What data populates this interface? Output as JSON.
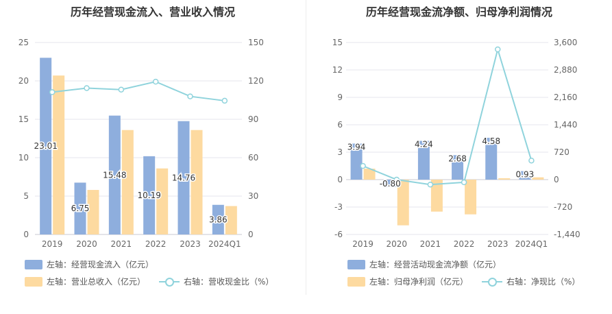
{
  "colors": {
    "bar1": "#8eaedd",
    "bar2": "#fddaa0",
    "line": "#8fd3dc",
    "grid": "#e6e6ee"
  },
  "chart_data": [
    {
      "type": "bar",
      "title": "历年经营现金流入、营业收入情况",
      "categories": [
        "2019",
        "2020",
        "2021",
        "2022",
        "2023",
        "2024Q1"
      ],
      "y_left": {
        "min": 0,
        "max": 25,
        "ticks": [
          "0",
          "5",
          "10",
          "15",
          "20",
          "25"
        ]
      },
      "y_right": {
        "min": 0,
        "max": 150,
        "ticks": [
          "0",
          "30",
          "60",
          "90",
          "120",
          "150"
        ]
      },
      "series": [
        {
          "name": "左轴：经营现金流入（亿元）",
          "axis": "left",
          "kind": "bar",
          "values": [
            23.01,
            6.75,
            15.48,
            10.19,
            14.76,
            3.86
          ],
          "labels": [
            "23.01",
            "6.75",
            "15.48",
            "10.19",
            "14.76",
            "3.86"
          ]
        },
        {
          "name": "左轴：营业总收入（亿元）",
          "axis": "left",
          "kind": "bar",
          "values": [
            20.7,
            5.8,
            13.6,
            8.6,
            13.6,
            3.7
          ]
        },
        {
          "name": "右轴：营收现金比（%）",
          "axis": "right",
          "kind": "line",
          "values": [
            111.2,
            114.4,
            113.2,
            119.4,
            107.9,
            104.5
          ]
        }
      ]
    },
    {
      "type": "bar",
      "title": "历年经营现金流净额、归母净利润情况",
      "categories": [
        "2019",
        "2020",
        "2021",
        "2022",
        "2023",
        "2024Q1"
      ],
      "y_left": {
        "min": -6,
        "max": 15,
        "ticks": [
          "-6",
          "-3",
          "0",
          "3",
          "6",
          "9",
          "12",
          "15"
        ]
      },
      "y_right": {
        "min": -1440,
        "max": 3600,
        "ticks": [
          "-1,440",
          "-720",
          "0",
          "720",
          "1,440",
          "2,160",
          "2,880",
          "3,600"
        ]
      },
      "series": [
        {
          "name": "左轴：经营活动现金流净额（亿元）",
          "axis": "left",
          "kind": "bar",
          "values": [
            3.94,
            -0.8,
            4.24,
            2.68,
            4.58,
            0.93
          ],
          "labels": [
            "3.94",
            "-0.80",
            "4.24",
            "2.68",
            "4.58",
            "0.93"
          ]
        },
        {
          "name": "左轴：归母净利润（亿元）",
          "axis": "left",
          "kind": "bar",
          "values": [
            1.2,
            -5.0,
            -3.5,
            -3.8,
            0.15,
            0.25
          ]
        },
        {
          "name": "右轴：净现比（%）",
          "axis": "right",
          "kind": "line",
          "values": [
            360,
            0,
            -130,
            -70,
            3420,
            500
          ]
        }
      ]
    }
  ]
}
